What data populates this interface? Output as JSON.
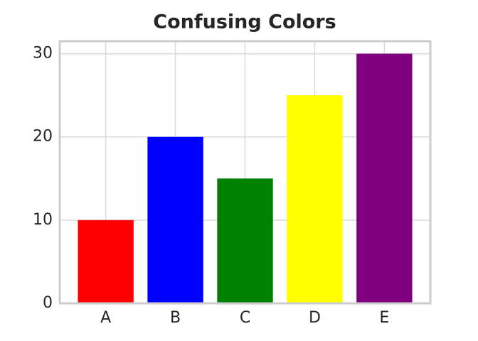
{
  "chart_data": {
    "type": "bar",
    "title": "Confusing Colors",
    "categories": [
      "A",
      "B",
      "C",
      "D",
      "E"
    ],
    "values": [
      10,
      20,
      15,
      25,
      30
    ],
    "colors": [
      "red",
      "blue",
      "green",
      "yellow",
      "purple"
    ],
    "ylim": [
      0,
      31.5
    ],
    "yticks": [
      0,
      10,
      20,
      30
    ],
    "grid": true
  }
}
